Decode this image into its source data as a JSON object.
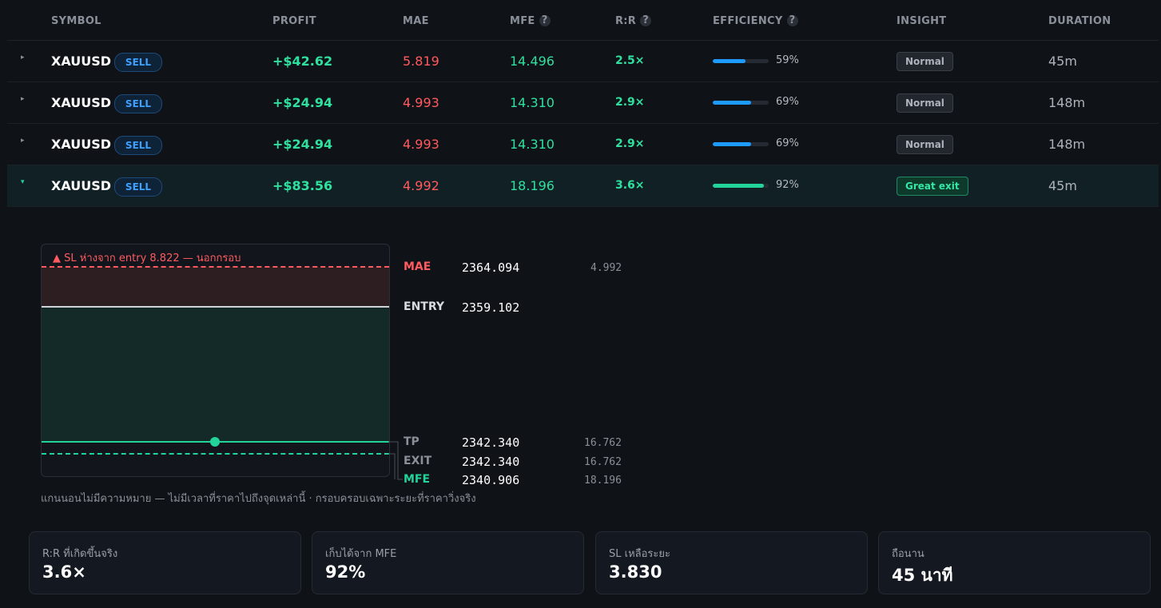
{
  "headers": {
    "symbol": "SYMBOL",
    "profit": "PROFIT",
    "mae": "MAE",
    "mfe": "MFE",
    "rr": "R:R",
    "efficiency": "EFFICIENCY",
    "insight": "INSIGHT",
    "duration": "DURATION",
    "help": "?"
  },
  "rows": [
    {
      "caret": "▸",
      "symbol": "XAUUSD",
      "side": "SELL",
      "profit": "+$42.62",
      "mae": "5.819",
      "mfe": "14.496",
      "rr": "2.5×",
      "efficiency": 59,
      "efficiency_label": "59%",
      "insight": "Normal",
      "duration": "45m"
    },
    {
      "caret": "▸",
      "symbol": "XAUUSD",
      "side": "SELL",
      "profit": "+$24.94",
      "mae": "4.993",
      "mfe": "14.310",
      "rr": "2.9×",
      "efficiency": 69,
      "efficiency_label": "69%",
      "insight": "Normal",
      "duration": "148m"
    },
    {
      "caret": "▸",
      "symbol": "XAUUSD",
      "side": "SELL",
      "profit": "+$24.94",
      "mae": "4.993",
      "mfe": "14.310",
      "rr": "2.9×",
      "efficiency": 69,
      "efficiency_label": "69%",
      "insight": "Normal",
      "duration": "148m"
    },
    {
      "caret": "▾",
      "symbol": "XAUUSD",
      "side": "SELL",
      "profit": "+$83.56",
      "mae": "4.992",
      "mfe": "18.196",
      "rr": "3.6×",
      "efficiency": 92,
      "efficiency_label": "92%",
      "insight": "Great exit",
      "duration": "45m"
    }
  ],
  "detail": {
    "warning": "▲ SL ห่างจาก entry 8.822 — นอกกรอบ",
    "levels": {
      "mae": {
        "label": "MAE",
        "price": "2364.094",
        "distance": "4.992"
      },
      "entry": {
        "label": "ENTRY",
        "price": "2359.102"
      },
      "tp": {
        "label": "TP",
        "price": "2342.340",
        "distance": "16.762"
      },
      "exit": {
        "label": "EXIT",
        "price": "2342.340",
        "distance": "16.762"
      },
      "mfe": {
        "label": "MFE",
        "price": "2340.906",
        "distance": "18.196"
      }
    },
    "note": "แกนนอนไม่มีความหมาย — ไม่มีเวลาที่ราคาไปถึงจุดเหล่านี้ · กรอบครอบเฉพาะระยะที่ราคาวิ่งจริง"
  },
  "cards": [
    {
      "label": "R:R ที่เกิดขึ้นจริง",
      "value": "3.6×"
    },
    {
      "label": "เก็บได้จาก MFE",
      "value": "92%"
    },
    {
      "label": "SL เหลือระยะ",
      "value": "3.830"
    },
    {
      "label": "ถือนาน",
      "value": "45 นาที"
    }
  ],
  "colors": {
    "profit": "#2fe09f",
    "loss": "#ff5a5f",
    "sell_badge": "#3ea0ff",
    "bar_blue": "#1e9bff",
    "bar_green": "#22d39a",
    "background": "#0f1217"
  }
}
